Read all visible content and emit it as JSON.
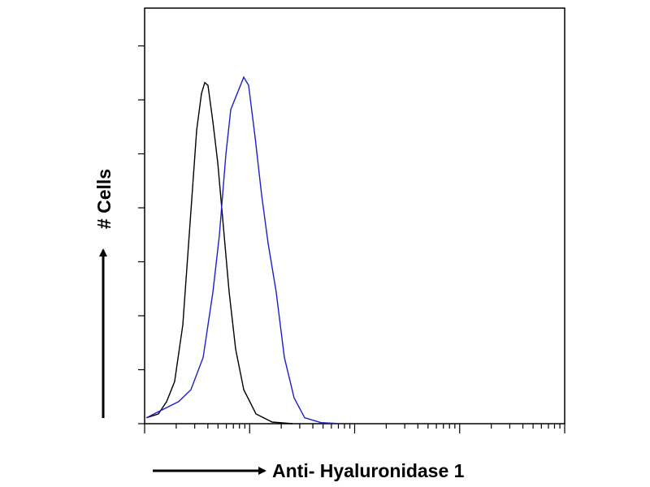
{
  "chart_data": {
    "type": "line",
    "x_label": "Anti- Hyaluronidase 1",
    "y_label": "# Cells",
    "xscale": "log",
    "xlim": [
      1,
      10000
    ],
    "ylim": [
      0,
      7.7
    ],
    "xticks": [
      1,
      2,
      3,
      4,
      5,
      6,
      7,
      8,
      9,
      10,
      20,
      30,
      40,
      50,
      60,
      70,
      80,
      90,
      100,
      200,
      300,
      400,
      500,
      600,
      700,
      800,
      900,
      1000,
      2000,
      3000,
      4000,
      5000,
      6000,
      7000,
      8000,
      9000,
      10000
    ],
    "yticks": [
      0,
      1,
      2,
      3,
      4,
      5,
      6,
      7
    ],
    "series": [
      {
        "color": "#000000",
        "x": [
          1.04,
          1.35,
          1.62,
          1.93,
          2.31,
          2.76,
          3.13,
          3.48,
          3.74,
          4.01,
          4.47,
          4.97,
          5.63,
          6.38,
          7.36,
          8.79,
          11.5,
          16.4,
          25.6
        ],
        "values": [
          0.11,
          0.18,
          0.41,
          0.78,
          1.83,
          3.94,
          5.44,
          6.12,
          6.32,
          6.27,
          5.59,
          4.84,
          3.64,
          2.44,
          1.38,
          0.63,
          0.18,
          0.03,
          0
        ]
      },
      {
        "color": "#1f1fc8",
        "x": [
          1.04,
          1.48,
          2.11,
          2.76,
          3.61,
          4.47,
          5.15,
          5.94,
          6.61,
          7.62,
          8.79,
          9.78,
          11.3,
          13.0,
          15.0,
          17.9,
          21.4,
          26.5,
          33.4,
          47.8,
          74.5
        ],
        "values": [
          0.11,
          0.26,
          0.41,
          0.63,
          1.23,
          2.44,
          3.49,
          4.99,
          5.82,
          6.12,
          6.42,
          6.27,
          5.29,
          4.24,
          3.34,
          2.44,
          1.23,
          0.48,
          0.11,
          0.02,
          0
        ]
      }
    ]
  }
}
